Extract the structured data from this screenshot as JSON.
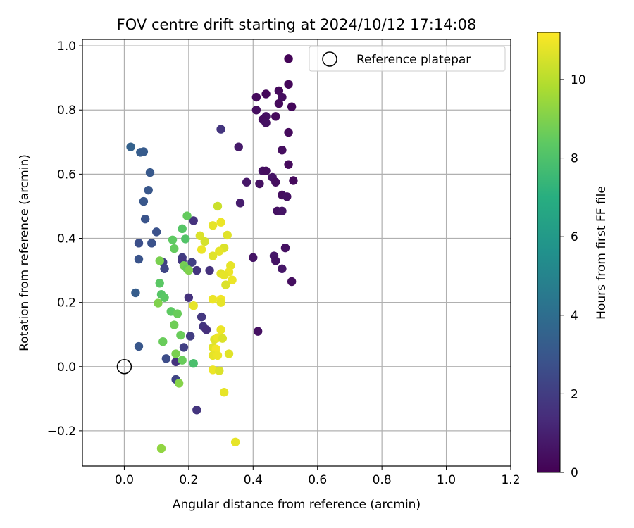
{
  "chart_data": {
    "type": "scatter",
    "title": "FOV centre drift starting at 2024/10/12 17:14:08",
    "xlabel": "Angular distance from reference (arcmin)",
    "ylabel": "Rotation from reference (arcmin)",
    "xlim": [
      -0.13,
      1.2
    ],
    "ylim": [
      -0.31,
      1.02
    ],
    "x_ticks": [
      0.0,
      0.2,
      0.4,
      0.6,
      0.8,
      1.0,
      1.2
    ],
    "x_tick_labels": [
      "0.0",
      "0.2",
      "0.4",
      "0.6",
      "0.8",
      "1.0",
      "1.2"
    ],
    "y_ticks": [
      -0.2,
      0.0,
      0.2,
      0.4,
      0.6,
      0.8,
      1.0
    ],
    "y_tick_labels": [
      "−0.2",
      "0.0",
      "0.2",
      "0.4",
      "0.6",
      "0.8",
      "1.0"
    ],
    "grid": true,
    "colormap": "viridis",
    "colorbar": {
      "label": "Hours from first FF file",
      "range": [
        0,
        11.2
      ],
      "ticks": [
        0,
        2,
        4,
        6,
        8,
        10
      ],
      "tick_labels": [
        "0",
        "2",
        "4",
        "6",
        "8",
        "10"
      ]
    },
    "legend": {
      "placement": "top-right",
      "entries": [
        {
          "label": "Reference platepar",
          "marker": "open-circle",
          "x": 0.0,
          "y": 0.0
        }
      ]
    },
    "points": [
      {
        "x": 0.51,
        "y": 0.96,
        "c": 0.1
      },
      {
        "x": 0.51,
        "y": 0.88,
        "c": 0.2
      },
      {
        "x": 0.48,
        "y": 0.86,
        "c": 0.3
      },
      {
        "x": 0.44,
        "y": 0.85,
        "c": 0.2
      },
      {
        "x": 0.41,
        "y": 0.84,
        "c": 0.3
      },
      {
        "x": 0.49,
        "y": 0.84,
        "c": 0.4
      },
      {
        "x": 0.48,
        "y": 0.82,
        "c": 0.3
      },
      {
        "x": 0.52,
        "y": 0.81,
        "c": 0.2
      },
      {
        "x": 0.41,
        "y": 0.8,
        "c": 0.4
      },
      {
        "x": 0.44,
        "y": 0.78,
        "c": 0.5
      },
      {
        "x": 0.47,
        "y": 0.78,
        "c": 0.3
      },
      {
        "x": 0.43,
        "y": 0.77,
        "c": 0.4
      },
      {
        "x": 0.44,
        "y": 0.76,
        "c": 0.5
      },
      {
        "x": 0.51,
        "y": 0.73,
        "c": 0.3
      },
      {
        "x": 0.3,
        "y": 0.74,
        "c": 1.7
      },
      {
        "x": 0.355,
        "y": 0.685,
        "c": 0.8
      },
      {
        "x": 0.49,
        "y": 0.675,
        "c": 0.4
      },
      {
        "x": 0.51,
        "y": 0.63,
        "c": 0.3
      },
      {
        "x": 0.43,
        "y": 0.61,
        "c": 0.5
      },
      {
        "x": 0.44,
        "y": 0.61,
        "c": 0.4
      },
      {
        "x": 0.46,
        "y": 0.59,
        "c": 0.6
      },
      {
        "x": 0.38,
        "y": 0.575,
        "c": 0.7
      },
      {
        "x": 0.42,
        "y": 0.57,
        "c": 0.5
      },
      {
        "x": 0.47,
        "y": 0.575,
        "c": 0.4
      },
      {
        "x": 0.525,
        "y": 0.58,
        "c": 0.3
      },
      {
        "x": 0.49,
        "y": 0.535,
        "c": 0.4
      },
      {
        "x": 0.505,
        "y": 0.53,
        "c": 0.5
      },
      {
        "x": 0.36,
        "y": 0.51,
        "c": 0.9
      },
      {
        "x": 0.475,
        "y": 0.485,
        "c": 0.5
      },
      {
        "x": 0.49,
        "y": 0.485,
        "c": 0.6
      },
      {
        "x": 0.5,
        "y": 0.37,
        "c": 0.5
      },
      {
        "x": 0.4,
        "y": 0.34,
        "c": 0.6
      },
      {
        "x": 0.465,
        "y": 0.345,
        "c": 0.7
      },
      {
        "x": 0.47,
        "y": 0.33,
        "c": 0.6
      },
      {
        "x": 0.49,
        "y": 0.305,
        "c": 0.7
      },
      {
        "x": 0.52,
        "y": 0.265,
        "c": 0.4
      },
      {
        "x": 0.415,
        "y": 0.11,
        "c": 0.5
      },
      {
        "x": 0.02,
        "y": 0.685,
        "c": 3.5
      },
      {
        "x": 0.05,
        "y": 0.668,
        "c": 3.3
      },
      {
        "x": 0.06,
        "y": 0.67,
        "c": 3.2
      },
      {
        "x": 0.08,
        "y": 0.605,
        "c": 3.1
      },
      {
        "x": 0.075,
        "y": 0.55,
        "c": 3.0
      },
      {
        "x": 0.06,
        "y": 0.515,
        "c": 3.0
      },
      {
        "x": 0.065,
        "y": 0.46,
        "c": 2.9
      },
      {
        "x": 0.1,
        "y": 0.42,
        "c": 2.8
      },
      {
        "x": 0.045,
        "y": 0.385,
        "c": 2.7
      },
      {
        "x": 0.085,
        "y": 0.385,
        "c": 2.8
      },
      {
        "x": 0.045,
        "y": 0.335,
        "c": 2.9
      },
      {
        "x": 0.035,
        "y": 0.23,
        "c": 3.3
      },
      {
        "x": 0.045,
        "y": 0.063,
        "c": 3.0
      },
      {
        "x": 0.13,
        "y": 0.025,
        "c": 2.6
      },
      {
        "x": 0.16,
        "y": -0.04,
        "c": 2.3
      },
      {
        "x": 0.12,
        "y": 0.325,
        "c": 2.1
      },
      {
        "x": 0.125,
        "y": 0.305,
        "c": 2.3
      },
      {
        "x": 0.18,
        "y": 0.34,
        "c": 2.0
      },
      {
        "x": 0.18,
        "y": 0.33,
        "c": 1.8
      },
      {
        "x": 0.21,
        "y": 0.325,
        "c": 2.1
      },
      {
        "x": 0.215,
        "y": 0.455,
        "c": 1.6
      },
      {
        "x": 0.225,
        "y": 0.3,
        "c": 1.7
      },
      {
        "x": 0.265,
        "y": 0.3,
        "c": 1.6
      },
      {
        "x": 0.2,
        "y": 0.215,
        "c": 1.6
      },
      {
        "x": 0.24,
        "y": 0.155,
        "c": 1.8
      },
      {
        "x": 0.245,
        "y": 0.125,
        "c": 1.7
      },
      {
        "x": 0.255,
        "y": 0.115,
        "c": 1.5
      },
      {
        "x": 0.205,
        "y": 0.095,
        "c": 2.0
      },
      {
        "x": 0.185,
        "y": 0.06,
        "c": 2.1
      },
      {
        "x": 0.16,
        "y": 0.015,
        "c": 1.6
      },
      {
        "x": 0.225,
        "y": -0.135,
        "c": 1.7
      },
      {
        "x": 0.195,
        "y": 0.47,
        "c": 8.5
      },
      {
        "x": 0.18,
        "y": 0.43,
        "c": 8.2
      },
      {
        "x": 0.15,
        "y": 0.395,
        "c": 8.4
      },
      {
        "x": 0.19,
        "y": 0.398,
        "c": 8.1
      },
      {
        "x": 0.155,
        "y": 0.368,
        "c": 8.5
      },
      {
        "x": 0.11,
        "y": 0.33,
        "c": 8.9
      },
      {
        "x": 0.185,
        "y": 0.315,
        "c": 8.8
      },
      {
        "x": 0.195,
        "y": 0.305,
        "c": 8.6
      },
      {
        "x": 0.2,
        "y": 0.3,
        "c": 9.0
      },
      {
        "x": 0.11,
        "y": 0.26,
        "c": 8.3
      },
      {
        "x": 0.115,
        "y": 0.225,
        "c": 8.2
      },
      {
        "x": 0.125,
        "y": 0.215,
        "c": 8.3
      },
      {
        "x": 0.105,
        "y": 0.198,
        "c": 9.0
      },
      {
        "x": 0.145,
        "y": 0.172,
        "c": 8.4
      },
      {
        "x": 0.165,
        "y": 0.165,
        "c": 8.6
      },
      {
        "x": 0.155,
        "y": 0.13,
        "c": 8.7
      },
      {
        "x": 0.175,
        "y": 0.098,
        "c": 8.6
      },
      {
        "x": 0.12,
        "y": 0.078,
        "c": 8.6
      },
      {
        "x": 0.16,
        "y": 0.04,
        "c": 8.9
      },
      {
        "x": 0.18,
        "y": 0.02,
        "c": 8.6
      },
      {
        "x": 0.215,
        "y": 0.01,
        "c": 7.9
      },
      {
        "x": 0.17,
        "y": -0.052,
        "c": 9.1
      },
      {
        "x": 0.115,
        "y": -0.255,
        "c": 9.3
      },
      {
        "x": 0.29,
        "y": 0.5,
        "c": 10.3
      },
      {
        "x": 0.235,
        "y": 0.408,
        "c": 10.6
      },
      {
        "x": 0.25,
        "y": 0.39,
        "c": 10.5
      },
      {
        "x": 0.275,
        "y": 0.44,
        "c": 10.8
      },
      {
        "x": 0.3,
        "y": 0.45,
        "c": 10.9
      },
      {
        "x": 0.32,
        "y": 0.41,
        "c": 10.7
      },
      {
        "x": 0.24,
        "y": 0.365,
        "c": 10.9
      },
      {
        "x": 0.31,
        "y": 0.37,
        "c": 10.6
      },
      {
        "x": 0.295,
        "y": 0.36,
        "c": 10.8
      },
      {
        "x": 0.275,
        "y": 0.345,
        "c": 10.7
      },
      {
        "x": 0.33,
        "y": 0.315,
        "c": 10.8
      },
      {
        "x": 0.325,
        "y": 0.295,
        "c": 10.9
      },
      {
        "x": 0.3,
        "y": 0.29,
        "c": 10.7
      },
      {
        "x": 0.31,
        "y": 0.285,
        "c": 10.8
      },
      {
        "x": 0.335,
        "y": 0.27,
        "c": 10.9
      },
      {
        "x": 0.315,
        "y": 0.255,
        "c": 10.6
      },
      {
        "x": 0.215,
        "y": 0.19,
        "c": 10.8
      },
      {
        "x": 0.275,
        "y": 0.21,
        "c": 10.9
      },
      {
        "x": 0.3,
        "y": 0.21,
        "c": 11.0
      },
      {
        "x": 0.3,
        "y": 0.2,
        "c": 10.8
      },
      {
        "x": 0.3,
        "y": 0.115,
        "c": 10.9
      },
      {
        "x": 0.28,
        "y": 0.085,
        "c": 10.7
      },
      {
        "x": 0.29,
        "y": 0.09,
        "c": 10.9
      },
      {
        "x": 0.305,
        "y": 0.088,
        "c": 10.6
      },
      {
        "x": 0.275,
        "y": 0.06,
        "c": 10.7
      },
      {
        "x": 0.285,
        "y": 0.055,
        "c": 11.0
      },
      {
        "x": 0.275,
        "y": 0.035,
        "c": 10.8
      },
      {
        "x": 0.29,
        "y": 0.035,
        "c": 10.9
      },
      {
        "x": 0.325,
        "y": 0.04,
        "c": 10.7
      },
      {
        "x": 0.275,
        "y": -0.01,
        "c": 10.9
      },
      {
        "x": 0.295,
        "y": -0.013,
        "c": 10.6
      },
      {
        "x": 0.31,
        "y": -0.08,
        "c": 10.8
      },
      {
        "x": 0.345,
        "y": -0.235,
        "c": 10.8
      }
    ]
  }
}
